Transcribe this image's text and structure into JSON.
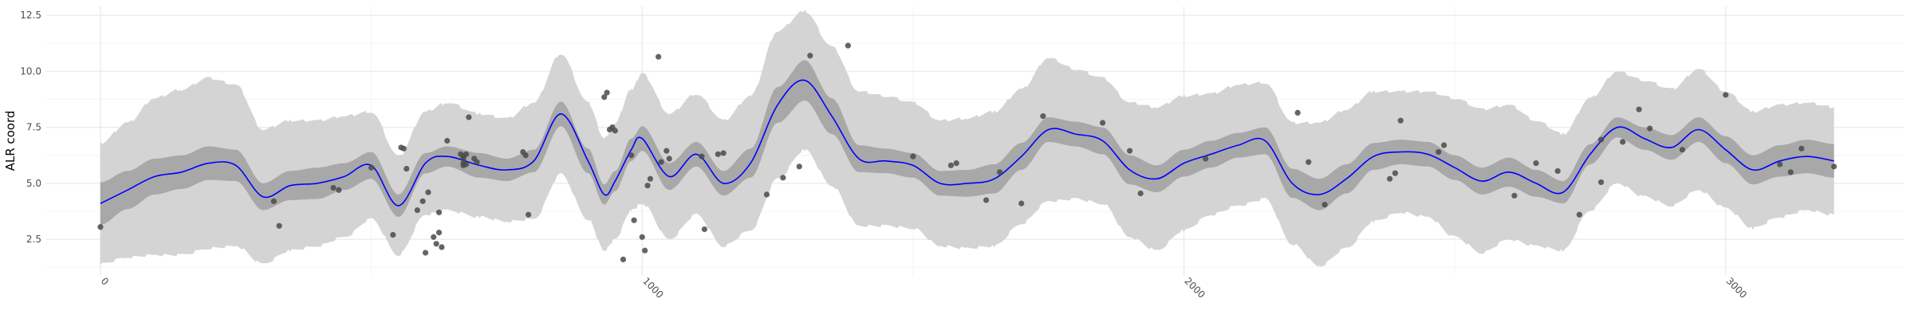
{
  "chart_data": {
    "type": "line",
    "ylabel": "ALR coord",
    "xlim": [
      -100,
      3330
    ],
    "ylim": [
      0.9,
      12.9
    ],
    "x_ticks": [
      0,
      1000,
      2000,
      3000
    ],
    "x_tick_labels": [
      "0",
      "1000",
      "2000",
      "3000"
    ],
    "y_ticks": [
      2.5,
      5.0,
      7.5,
      10.0,
      12.5
    ],
    "y_tick_labels": [
      "2.5",
      "5.0",
      "7.5",
      "10.0",
      "12.5"
    ],
    "grid": true,
    "colors": {
      "line": "#0000ff",
      "inner_band": "#a8a8a8",
      "outer_band": "#d4d4d4",
      "points": "#4a4a4a",
      "grid_major": "#ebebeb",
      "grid_minor": "#f4f4f4"
    },
    "mean_line": {
      "x": [
        0,
        50,
        100,
        150,
        200,
        250,
        300,
        350,
        400,
        450,
        500,
        550,
        600,
        640,
        700,
        750,
        800,
        850,
        900,
        930,
        950,
        980,
        1000,
        1050,
        1100,
        1150,
        1200,
        1250,
        1300,
        1350,
        1400,
        1450,
        1500,
        1550,
        1600,
        1650,
        1700,
        1750,
        1800,
        1850,
        1900,
        1950,
        2000,
        2050,
        2100,
        2150,
        2200,
        2250,
        2300,
        2350,
        2400,
        2450,
        2500,
        2550,
        2600,
        2650,
        2700,
        2750,
        2800,
        2850,
        2900,
        2950,
        3000,
        3050,
        3100,
        3150,
        3200
      ],
      "y": [
        4.1,
        4.7,
        5.3,
        5.5,
        5.9,
        5.8,
        4.4,
        4.9,
        5.0,
        5.3,
        5.8,
        4.0,
        5.9,
        6.2,
        5.8,
        5.6,
        6.0,
        8.1,
        6.0,
        4.5,
        5.1,
        6.5,
        7.0,
        5.3,
        6.3,
        5.0,
        5.9,
        8.5,
        9.6,
        8.0,
        6.1,
        6.0,
        5.8,
        5.0,
        5.0,
        5.2,
        6.2,
        7.4,
        7.2,
        6.9,
        5.6,
        5.2,
        5.9,
        6.3,
        6.7,
        6.9,
        5.0,
        4.5,
        5.2,
        6.2,
        6.4,
        6.3,
        5.7,
        5.1,
        5.5,
        5.0,
        4.6,
        6.3,
        7.5,
        7.0,
        6.6,
        7.4,
        6.5,
        5.6,
        6.0,
        6.2,
        6.0
      ]
    },
    "inner_band_half_width": [
      0.95,
      0.85,
      0.8,
      0.75,
      0.75,
      0.7,
      0.6,
      0.65,
      0.7,
      0.6,
      0.6,
      0.5,
      0.45,
      0.45,
      0.55,
      0.5,
      0.5,
      0.55,
      0.55,
      0.45,
      0.45,
      0.5,
      0.55,
      0.6,
      0.55,
      0.55,
      0.65,
      0.8,
      0.9,
      0.8,
      0.6,
      0.55,
      0.55,
      0.55,
      0.6,
      0.65,
      0.6,
      0.55,
      0.55,
      0.6,
      0.65,
      0.6,
      0.6,
      0.6,
      0.55,
      0.6,
      0.65,
      0.7,
      0.65,
      0.6,
      0.55,
      0.55,
      0.55,
      0.6,
      0.65,
      0.6,
      0.5,
      0.45,
      0.45,
      0.5,
      0.55,
      0.55,
      0.6,
      0.65,
      0.7,
      0.75,
      0.75
    ],
    "outer_band_half_width": [
      2.7,
      3.0,
      3.5,
      3.7,
      3.8,
      3.6,
      3.0,
      2.9,
      2.8,
      2.7,
      2.4,
      2.2,
      2.3,
      2.4,
      2.3,
      2.3,
      2.6,
      2.7,
      2.6,
      2.5,
      2.6,
      2.7,
      2.9,
      2.8,
      2.7,
      2.8,
      3.0,
      3.3,
      3.1,
      3.1,
      3.0,
      2.9,
      2.8,
      2.8,
      2.9,
      3.0,
      3.0,
      3.2,
      2.9,
      2.8,
      3.0,
      3.2,
      3.0,
      2.7,
      2.7,
      2.6,
      2.7,
      3.2,
      3.1,
      2.9,
      2.7,
      2.8,
      3.1,
      3.2,
      3.0,
      2.8,
      2.6,
      2.5,
      2.5,
      2.6,
      2.6,
      2.7,
      2.6,
      2.6,
      2.5,
      2.4,
      2.4
    ],
    "points": [
      [
        0,
        3.05
      ],
      [
        320,
        4.2
      ],
      [
        330,
        3.1
      ],
      [
        430,
        4.8
      ],
      [
        440,
        4.7
      ],
      [
        500,
        5.7
      ],
      [
        540,
        2.7
      ],
      [
        555,
        6.6
      ],
      [
        560,
        6.55
      ],
      [
        565,
        5.65
      ],
      [
        585,
        3.8
      ],
      [
        595,
        4.2
      ],
      [
        600,
        1.9
      ],
      [
        605,
        4.6
      ],
      [
        615,
        2.6
      ],
      [
        620,
        2.3
      ],
      [
        625,
        2.8
      ],
      [
        630,
        2.15
      ],
      [
        625,
        3.7
      ],
      [
        640,
        6.9
      ],
      [
        665,
        6.3
      ],
      [
        670,
        5.8
      ],
      [
        670,
        6.2
      ],
      [
        670,
        5.9
      ],
      [
        670,
        6.1
      ],
      [
        675,
        5.85
      ],
      [
        675,
        6.3
      ],
      [
        680,
        7.95
      ],
      [
        690,
        6.1
      ],
      [
        695,
        5.95
      ],
      [
        780,
        6.4
      ],
      [
        785,
        6.25
      ],
      [
        790,
        3.6
      ],
      [
        930,
        8.85
      ],
      [
        935,
        9.05
      ],
      [
        940,
        7.4
      ],
      [
        945,
        7.5
      ],
      [
        950,
        7.35
      ],
      [
        965,
        1.6
      ],
      [
        980,
        6.25
      ],
      [
        985,
        3.35
      ],
      [
        1000,
        2.6
      ],
      [
        1005,
        2.0
      ],
      [
        1010,
        4.9
      ],
      [
        1015,
        5.2
      ],
      [
        1030,
        10.65
      ],
      [
        1035,
        5.95
      ],
      [
        1045,
        6.45
      ],
      [
        1050,
        6.1
      ],
      [
        1110,
        6.2
      ],
      [
        1115,
        2.95
      ],
      [
        1140,
        6.3
      ],
      [
        1150,
        6.35
      ],
      [
        1230,
        4.5
      ],
      [
        1260,
        5.25
      ],
      [
        1290,
        5.75
      ],
      [
        1310,
        10.7
      ],
      [
        1380,
        11.15
      ],
      [
        1500,
        6.2
      ],
      [
        1570,
        5.8
      ],
      [
        1580,
        5.9
      ],
      [
        1635,
        4.25
      ],
      [
        1660,
        5.5
      ],
      [
        1700,
        4.1
      ],
      [
        1740,
        8.0
      ],
      [
        1850,
        7.7
      ],
      [
        1900,
        6.45
      ],
      [
        1920,
        4.55
      ],
      [
        2040,
        6.1
      ],
      [
        2210,
        8.15
      ],
      [
        2230,
        5.95
      ],
      [
        2260,
        4.05
      ],
      [
        2380,
        5.2
      ],
      [
        2390,
        5.45
      ],
      [
        2400,
        7.8
      ],
      [
        2470,
        6.4
      ],
      [
        2480,
        6.7
      ],
      [
        2610,
        4.45
      ],
      [
        2650,
        5.9
      ],
      [
        2690,
        5.55
      ],
      [
        2730,
        3.6
      ],
      [
        2770,
        5.05
      ],
      [
        2770,
        6.95
      ],
      [
        2810,
        6.85
      ],
      [
        2840,
        8.3
      ],
      [
        2860,
        7.45
      ],
      [
        2920,
        6.5
      ],
      [
        3000,
        8.95
      ],
      [
        3100,
        5.85
      ],
      [
        3120,
        5.5
      ],
      [
        3140,
        6.55
      ],
      [
        3200,
        5.75
      ]
    ]
  }
}
